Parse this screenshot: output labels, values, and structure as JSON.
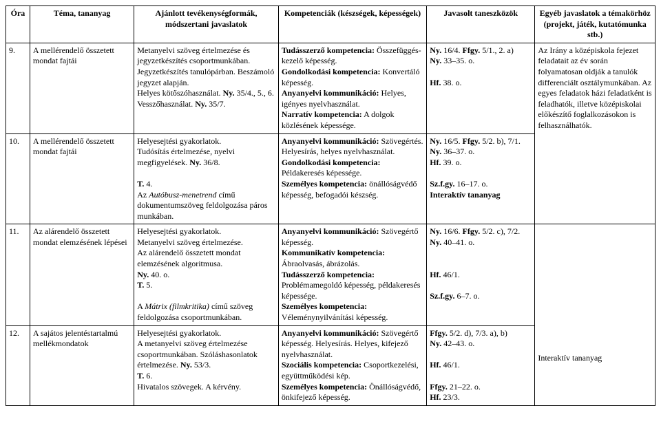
{
  "headers": {
    "ora": "Óra",
    "tema": "Téma, tananyag",
    "tev": "Ajánlott tevékenységformák, módszertani javaslatok",
    "komp": "Kompetenciák (készségek, képességek)",
    "tan": "Javasolt taneszközök",
    "egyeb": "Egyéb javaslatok a témakörhöz (projekt, játék, kutatómunka stb.)"
  },
  "rows": [
    {
      "ora": "9.",
      "tema": "A mellérendelő összetett mondat fajtái",
      "tev": "Metanyelvi szöveg értelmezése és jegyzetkészítés csoportmunkában. Jegyzetkészítés tanulópárban. Beszámoló jegyzet alapján.\nHelyes kötőszóhasználat. Ny. 35/4., 5., 6.\nVesszőhasználat. Ny. 35/7.",
      "komp": "Tudásszerző kompetencia: Összefüggés-kezelő képesség.\nGondolkodási kompetencia: Konvertáló képesség.\nAnyanyelvi kommunikáció: Helyes, igényes nyelvhasználat.\nNarratív kompetencia: A dolgok közlésének képessége.",
      "tan": "Ny. 16/4. Ffgy. 5/1., 2. a)\nNy. 33–35. o.\n\nHf. 38. o."
    },
    {
      "ora": "10.",
      "tema": "A mellérendelő összetett mondat fajtái",
      "tev": "Helyesejtési gyakorlatok.\nTudósítás értelmezése, nyelvi megfigyelések. Ny. 36/8.\n\nT. 4.\nAz Autóbusz-menetrend című dokumentumszöveg feldolgozása páros munkában.",
      "komp": "Anyanyelvi kommunikáció: Szövegértés. Helyesírás, helyes nyelvhasználat.\nGondolkodási kompetencia: Példakeresés képessége.\nSzemélyes kompetencia: önállóságvédő képesség, befogadói készség.",
      "tan": "Ny. 16/5. Ffgy. 5/2. b), 7/1.\nNy. 36–37. o.\nHf. 39. o.\n\nSz.f.gy. 16–17. o.\nInteraktív tananyag"
    },
    {
      "ora": "11.",
      "tema": "Az alárendelő összetett mondat elemzésének lépései",
      "tev": "Helyesejtési gyakorlatok.\nMetanyelvi szöveg értelmezése.\nAz alárendelő összetett mondat elemzésének algoritmusa.\nNy. 40. o.\nT. 5.\n\nA Mátrix (filmkritika) című szöveg feldolgozása csoportmunkában.",
      "komp": "Anyanyelvi kommunikáció: Szövegértő képesség.\nKommunikatív kompetencia: Ábraolvasás, ábrázolás.\nTudásszerző kompetencia: Problémamegoldó képesség, példakeresés képessége.\nSzemélyes kompetencia: Véleménynyilvánítási képesség.",
      "tan": "Ny. 16/6. Ffgy. 5/2. c), 7/2.\nNy. 40–41. o.\n\n\nHf. 46/1.\n\nSz.f.gy. 6–7. o."
    },
    {
      "ora": "12.",
      "tema": "A sajátos jelentéstartalmú mellékmondatok",
      "tev": "Helyesejtési gyakorlatok.\nA metanyelvi szöveg értelmezése csoportmunkában. Szóláshasonlatok értelmezése. Ny. 53/3.\nT. 6.\nHivatalos szövegek. A kérvény.",
      "komp": "Anyanyelvi kommunikáció: Szövegértő képesség. Helyesírás. Helyes, kifejező nyelvhasználat.\nSzociális kompetencia: Csoportkezelési, együttműködési kép.\nSzemélyes kompetencia: Önállóságvédő, önkifejező képesség.",
      "tan": "Ffgy. 5/2. d), 7/3. a), b)\nNy. 42–43. o.\n\nHf. 46/1.\n\nFfgy. 21–22. o.\nHf. 23/3."
    }
  ],
  "egyeb_top": "Az Irány a középiskola fejezet feladatait az év során folyamatosan oldják a tanulók differenciált osztálymunkában. Az egyes feladatok házi feladatként is feladhatók, illetve középiskolai előkészítő foglalkozásokon is felhasználhatók.",
  "egyeb_bottom": "Interaktív tananyag",
  "style": {
    "font_family": "Times New Roman",
    "font_size_pt": 12,
    "border_color": "#000000",
    "background_color": "#ffffff",
    "text_color": "#000000"
  }
}
